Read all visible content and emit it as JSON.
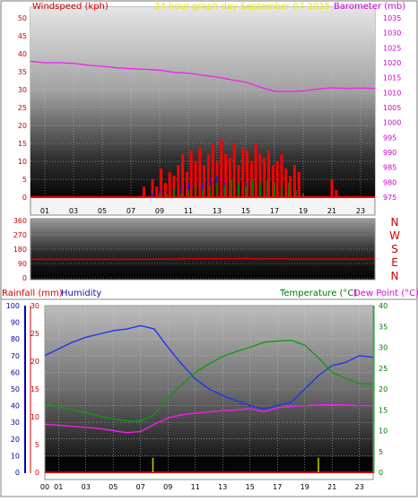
{
  "chart_data": [
    {
      "type": "line",
      "title": "24 hour graph day    September 07 2025",
      "left_axis_label": "Windspeed (kph)",
      "right_axis_label": "Barometer (mb)",
      "left_ylim": [
        0,
        50
      ],
      "left_ticks": [
        "0",
        "5",
        "10",
        "15",
        "20",
        "25",
        "30",
        "35",
        "40",
        "45",
        "50"
      ],
      "right_ylim": [
        975,
        1035
      ],
      "right_ticks": [
        "975",
        "980",
        "985",
        "990",
        "995",
        "1000",
        "1005",
        "1010",
        "1015",
        "1020",
        "1025",
        "1030",
        "1035"
      ],
      "x_ticks": [
        "01",
        "03",
        "05",
        "07",
        "09",
        "11",
        "13",
        "15",
        "17",
        "19",
        "21",
        "23"
      ],
      "grid": true,
      "series": [
        {
          "name": "Barometer (mb)",
          "axis": "right",
          "color": "#ee22ee",
          "x": [
            0,
            1,
            2,
            3,
            4,
            5,
            6,
            7,
            8,
            9,
            10,
            11,
            12,
            13,
            14,
            15,
            16,
            17,
            18,
            19,
            20,
            21,
            22,
            23,
            24
          ],
          "values": [
            1020.5,
            1020.0,
            1020.0,
            1019.8,
            1019.2,
            1018.8,
            1018.3,
            1018.0,
            1017.8,
            1017.5,
            1016.8,
            1016.5,
            1015.8,
            1015.2,
            1014.3,
            1013.5,
            1011.8,
            1010.5,
            1010.4,
            1010.6,
            1011.2,
            1011.6,
            1011.4,
            1011.5,
            1011.4
          ]
        },
        {
          "name": "Wind gust",
          "axis": "left",
          "color": "#ff0000",
          "x": [
            7.9,
            8.2,
            8.5,
            8.8,
            9.1,
            9.4,
            9.7,
            10.0,
            10.3,
            10.6,
            10.9,
            11.2,
            11.5,
            11.8,
            12.1,
            12.4,
            12.7,
            13.0,
            13.3,
            13.6,
            13.9,
            14.2,
            14.5,
            14.8,
            15.1,
            15.4,
            15.7,
            16.0,
            16.3,
            16.6,
            16.9,
            17.2,
            17.5,
            17.8,
            18.1,
            18.4,
            18.7,
            19.0,
            21.0,
            21.3
          ],
          "values": [
            3,
            0,
            5,
            3,
            8,
            4,
            7,
            6,
            9,
            12,
            7,
            13,
            10,
            14,
            9,
            12,
            15,
            10,
            16,
            12,
            11,
            15,
            9,
            14,
            13,
            10,
            15,
            12,
            11,
            13,
            9,
            10,
            12,
            8,
            6,
            9,
            7,
            0,
            5,
            2
          ]
        },
        {
          "name": "Wind speed",
          "axis": "left",
          "color": "#2222cc",
          "x": [
            8.5,
            9.0,
            9.5,
            10.0,
            10.5,
            11.0,
            11.5,
            12.0,
            12.5,
            13.0,
            13.5,
            14.0,
            14.5,
            15.0,
            15.5,
            16.0,
            16.5,
            17.0,
            17.5,
            18.0,
            18.5
          ],
          "values": [
            1,
            2,
            1,
            2,
            3,
            4,
            3,
            4,
            5,
            6,
            4,
            5,
            3,
            4,
            5,
            4,
            3,
            2,
            3,
            2,
            1
          ]
        },
        {
          "name": "Wind average",
          "axis": "left",
          "color": "#007700",
          "x": [
            9.0,
            9.5,
            10.0,
            10.5,
            11.0,
            11.5,
            12.0,
            12.5,
            13.0,
            13.5,
            14.0,
            14.5,
            15.0,
            15.5,
            16.0,
            16.5,
            17.0,
            17.5,
            18.0,
            18.5,
            19.0
          ],
          "values": [
            1,
            1,
            2,
            1,
            2,
            3,
            2,
            3,
            4,
            3,
            5,
            4,
            3,
            5,
            4,
            5,
            4,
            3,
            4,
            2,
            1
          ]
        }
      ]
    },
    {
      "type": "line",
      "right_label_letters": [
        "N",
        "W",
        "S",
        "E",
        "N"
      ],
      "ylim": [
        0,
        360
      ],
      "y_ticks": [
        "0",
        "90",
        "180",
        "270",
        "360"
      ],
      "grid": true,
      "series": [
        {
          "name": "Wind direction",
          "color": "#dd0000",
          "x": [
            0,
            2,
            4,
            6,
            8,
            10,
            12,
            13,
            14,
            15,
            16,
            17,
            18,
            20,
            22,
            24
          ],
          "values": [
            116,
            116,
            116,
            116,
            116,
            118,
            120,
            121,
            119,
            122,
            118,
            120,
            118,
            118,
            118,
            118
          ]
        }
      ]
    },
    {
      "type": "line",
      "labels": {
        "rainfall": "Rainfall (mm)",
        "humidity": "Humidity",
        "temperature": "Temperature (°C)",
        "dewpoint": "Dew Point (°C)"
      },
      "humidity_ylim": [
        0,
        100
      ],
      "humidity_ticks": [
        "0",
        "10",
        "20",
        "30",
        "40",
        "50",
        "60",
        "70",
        "80",
        "90",
        "100"
      ],
      "rain_ylim": [
        0,
        30
      ],
      "rain_ticks": [
        "0",
        "5",
        "10",
        "15",
        "20",
        "25",
        "30"
      ],
      "temp_ylim": [
        0,
        40
      ],
      "temp_ticks": [
        "0",
        "5",
        "10",
        "15",
        "20",
        "25",
        "30",
        "35",
        "40"
      ],
      "x_ticks": [
        "00",
        "01",
        "03",
        "05",
        "07",
        "09",
        "11",
        "13",
        "15",
        "17",
        "19",
        "21",
        "23"
      ],
      "grid": true,
      "series": [
        {
          "name": "Humidity",
          "axis": "humidity",
          "color": "#2233ee",
          "x": [
            0,
            1,
            2,
            3,
            4,
            5,
            6,
            7,
            8,
            9,
            10,
            11,
            12,
            13,
            14,
            15,
            16,
            17,
            18,
            19,
            20,
            21,
            22,
            23,
            24
          ],
          "values": [
            70,
            74,
            78,
            81,
            83,
            85,
            86,
            88,
            86,
            75,
            65,
            56,
            50,
            46,
            43,
            40,
            38,
            40,
            42,
            50,
            58,
            64,
            66,
            70,
            69
          ]
        },
        {
          "name": "Temperature (°C)",
          "axis": "temp",
          "color": "#119911",
          "x": [
            0,
            1,
            2,
            3,
            4,
            5,
            6,
            7,
            8,
            9,
            10,
            11,
            12,
            13,
            14,
            15,
            16,
            17,
            18,
            19,
            20,
            21,
            22,
            23,
            24
          ],
          "values": [
            16.5,
            15.8,
            15.0,
            14.3,
            13.5,
            12.8,
            12.3,
            12.3,
            13.8,
            18.0,
            21.0,
            24.0,
            26.0,
            27.8,
            29.0,
            30.0,
            31.2,
            31.5,
            31.7,
            30.5,
            27.5,
            24.0,
            22.5,
            21.3,
            21.2
          ]
        },
        {
          "name": "Dew Point (°C)",
          "axis": "temp",
          "color": "#ee22ee",
          "x": [
            0,
            1,
            2,
            3,
            4,
            5,
            6,
            7,
            8,
            9,
            10,
            11,
            12,
            13,
            14,
            15,
            16,
            17,
            18,
            19,
            20,
            21,
            22,
            23,
            24
          ],
          "values": [
            11.5,
            11.3,
            11.0,
            10.8,
            10.5,
            10.0,
            9.5,
            9.8,
            11.5,
            13.0,
            13.8,
            14.2,
            14.5,
            14.8,
            15.0,
            15.3,
            14.5,
            15.5,
            15.8,
            16.0,
            16.2,
            16.2,
            16.2,
            16.0,
            16.0
          ]
        },
        {
          "name": "Rainfall (mm)",
          "axis": "rain",
          "color": "#cc0000",
          "x": [
            0,
            24
          ],
          "values": [
            0,
            0
          ]
        },
        {
          "name": "Rain events",
          "axis": "rain",
          "color": "#cccc00",
          "x": [
            7.9,
            20.0
          ],
          "values": [
            2.6,
            2.6
          ]
        }
      ]
    }
  ]
}
